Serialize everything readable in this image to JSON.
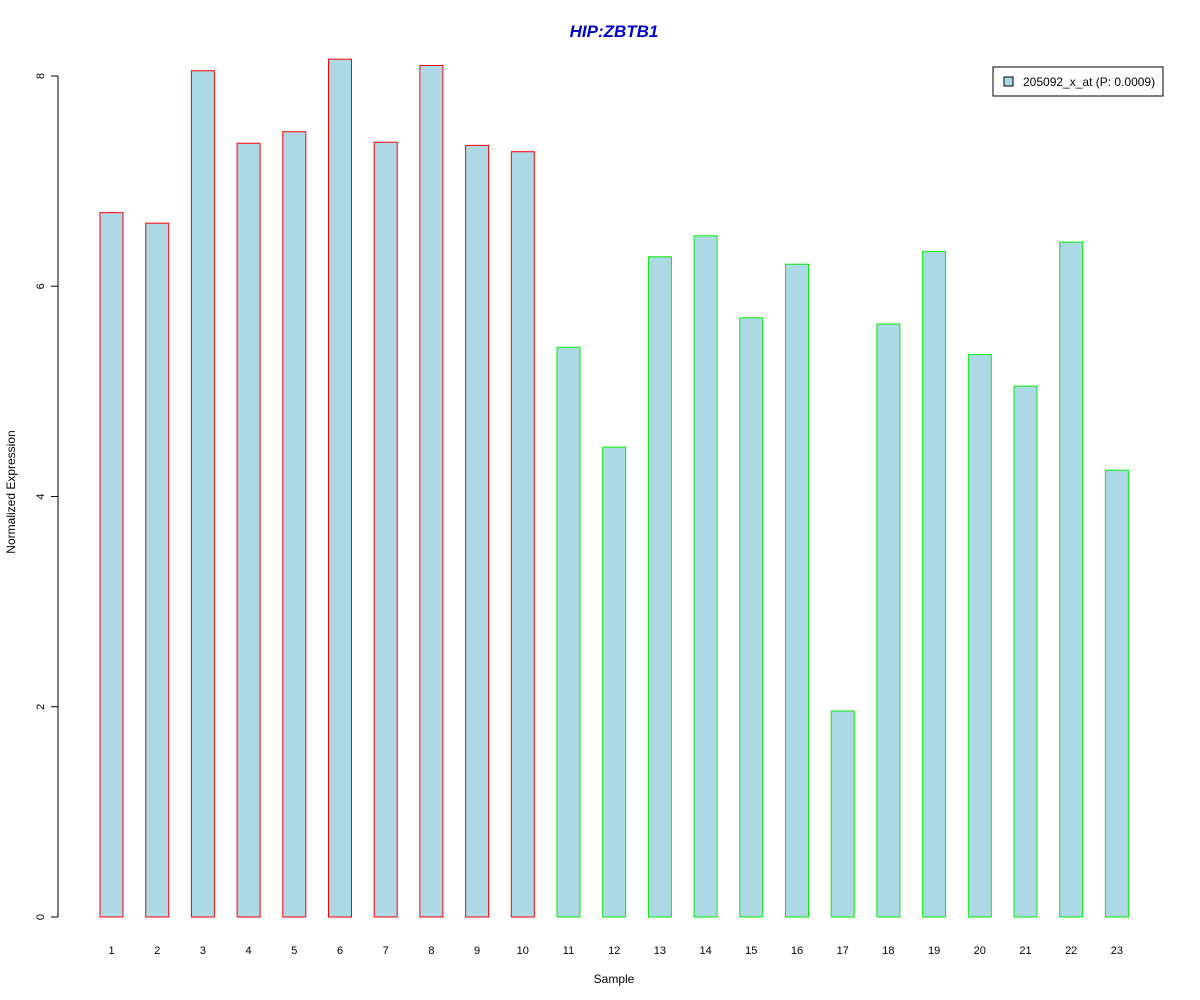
{
  "chart_data": {
    "type": "bar",
    "title": "HIP:ZBTB1",
    "xlabel": "Sample",
    "ylabel": "Normalized Expression",
    "ylim": [
      0,
      8.2
    ],
    "yticks": [
      0,
      2,
      4,
      6,
      8
    ],
    "categories": [
      "1",
      "2",
      "3",
      "4",
      "5",
      "6",
      "7",
      "8",
      "9",
      "10",
      "11",
      "12",
      "13",
      "14",
      "15",
      "16",
      "17",
      "18",
      "19",
      "20",
      "21",
      "22",
      "23"
    ],
    "series": [
      {
        "name": "205092_x_at (P: 0.0009)",
        "values": [
          6.7,
          6.6,
          8.05,
          7.36,
          7.47,
          8.16,
          7.37,
          8.1,
          7.34,
          7.28,
          5.42,
          4.47,
          6.28,
          6.48,
          5.7,
          6.21,
          1.96,
          5.64,
          6.33,
          5.35,
          5.05,
          6.42,
          4.25
        ]
      }
    ],
    "groups": [
      {
        "from": 0,
        "to": 9,
        "border": "#ff0000"
      },
      {
        "from": 10,
        "to": 22,
        "border": "#00ee00"
      }
    ],
    "fill": "#add8e6",
    "title_color": "#0000cc",
    "legend_position": "top-right",
    "grid": false
  }
}
